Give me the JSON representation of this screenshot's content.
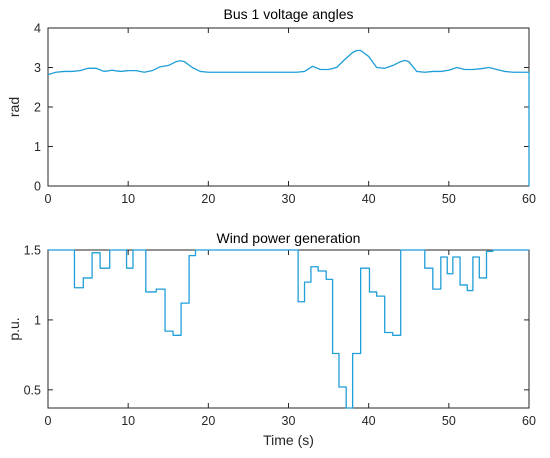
{
  "chart_data": [
    {
      "type": "line",
      "title": "Bus 1 voltage angles",
      "xlabel": "",
      "ylabel": "rad",
      "xlim": [
        0,
        60
      ],
      "ylim": [
        0,
        4
      ],
      "xticks": [
        0,
        10,
        20,
        30,
        40,
        50,
        60
      ],
      "yticks": [
        0,
        1,
        2,
        3,
        4
      ],
      "grid": false,
      "line_color": "#1f9ed8",
      "series": [
        {
          "x": [
            0,
            1,
            2,
            3,
            4,
            5,
            6,
            7,
            8,
            9,
            10,
            11,
            12,
            13,
            14,
            15,
            16,
            16.5,
            17,
            18,
            19,
            20,
            22,
            25,
            28,
            30,
            31,
            32,
            33,
            34,
            35,
            36,
            37,
            38,
            38.5,
            39,
            40,
            41,
            42,
            43,
            44,
            44.5,
            45,
            46,
            47,
            48,
            49,
            50,
            51,
            52,
            53,
            54,
            55,
            56,
            57,
            58,
            59,
            59.8,
            60,
            60
          ],
          "y": [
            2.82,
            2.88,
            2.9,
            2.9,
            2.92,
            2.98,
            2.98,
            2.9,
            2.93,
            2.9,
            2.92,
            2.92,
            2.88,
            2.92,
            3.02,
            3.05,
            3.15,
            3.17,
            3.15,
            3.0,
            2.9,
            2.88,
            2.88,
            2.88,
            2.88,
            2.88,
            2.88,
            2.9,
            3.03,
            2.95,
            2.95,
            3.0,
            3.2,
            3.38,
            3.43,
            3.43,
            3.28,
            3.0,
            2.98,
            3.05,
            3.15,
            3.18,
            3.15,
            2.9,
            2.88,
            2.9,
            2.9,
            2.93,
            3.0,
            2.95,
            2.95,
            2.97,
            3.0,
            2.95,
            2.9,
            2.88,
            2.88,
            2.88,
            2.88,
            0.0
          ]
        }
      ]
    },
    {
      "type": "line",
      "title": "Wind power generation",
      "xlabel": "Time (s)",
      "ylabel": "p.u.",
      "xlim": [
        0,
        60
      ],
      "ylim": [
        0.37,
        1.5
      ],
      "xticks": [
        0,
        10,
        20,
        30,
        40,
        50,
        60
      ],
      "yticks": [
        0.5,
        1,
        1.5
      ],
      "grid": false,
      "line_color": "#1f9ed8",
      "series": [
        {
          "x": [
            0,
            3.3,
            3.3,
            4.4,
            4.4,
            5.5,
            5.5,
            6.5,
            6.5,
            7.7,
            7.7,
            9.8,
            9.8,
            10.6,
            10.6,
            12.2,
            12.2,
            13.5,
            13.5,
            14.6,
            14.6,
            15.6,
            15.6,
            16.6,
            16.6,
            17.6,
            17.6,
            18.4,
            18.4,
            31.2,
            31.2,
            32.0,
            32.0,
            32.8,
            32.8,
            33.7,
            33.7,
            34.7,
            34.7,
            35.5,
            35.5,
            36.3,
            36.3,
            37.2,
            37.2,
            38.0,
            38.0,
            39.0,
            39.0,
            40.1,
            40.1,
            41.0,
            41.0,
            42.0,
            42.0,
            43.0,
            43.0,
            44.0,
            44.0,
            44.8,
            44.8,
            47.0,
            47.0,
            48.0,
            48.0,
            49.0,
            49.0,
            49.8,
            49.8,
            50.5,
            50.5,
            51.4,
            51.4,
            52.3,
            52.3,
            53.0,
            53.0,
            53.8,
            53.8,
            54.7,
            54.7,
            55.5,
            55.5,
            60
          ],
          "y": [
            1.5,
            1.5,
            1.23,
            1.23,
            1.3,
            1.3,
            1.48,
            1.48,
            1.37,
            1.37,
            1.5,
            1.5,
            1.37,
            1.37,
            1.5,
            1.5,
            1.2,
            1.2,
            1.22,
            1.22,
            0.92,
            0.92,
            0.89,
            0.89,
            1.12,
            1.12,
            1.46,
            1.46,
            1.5,
            1.5,
            1.13,
            1.13,
            1.27,
            1.27,
            1.38,
            1.38,
            1.35,
            1.35,
            1.29,
            1.29,
            0.76,
            0.76,
            0.52,
            0.52,
            0.37,
            0.37,
            0.76,
            0.76,
            1.37,
            1.37,
            1.2,
            1.2,
            1.17,
            1.17,
            0.91,
            0.91,
            0.89,
            0.89,
            1.5,
            1.5,
            1.5,
            1.5,
            1.37,
            1.37,
            1.22,
            1.22,
            1.45,
            1.45,
            1.33,
            1.33,
            1.45,
            1.45,
            1.25,
            1.25,
            1.21,
            1.21,
            1.45,
            1.45,
            1.3,
            1.3,
            1.49,
            1.49,
            1.5,
            1.5
          ]
        }
      ]
    }
  ]
}
